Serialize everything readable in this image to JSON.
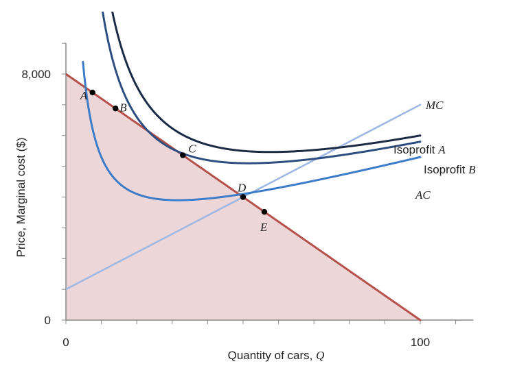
{
  "chart_data": {
    "type": "line",
    "xlabel": "Quantity of cars, ",
    "xlabel_var": "Q",
    "ylabel": "Price, Marginal cost ($)",
    "xlim": [
      0,
      115
    ],
    "ylim": [
      0,
      9000
    ],
    "x_ticks": [
      {
        "value": 0,
        "label": "0"
      },
      {
        "value": 100,
        "label": "100"
      }
    ],
    "y_ticks": [
      {
        "value": 0,
        "label": "0"
      },
      {
        "value": 8000,
        "label": "8,000"
      }
    ],
    "grid": false,
    "colors": {
      "demand": "#b5504a",
      "demand_fill": "#ecd6d7",
      "mc": "#9db9e3",
      "isoprofit_a": "#1b2a45",
      "isoprofit_b": "#2e4d80",
      "ac": "#3d7cc9"
    },
    "series": [
      {
        "key": "demand",
        "kind": "line",
        "x": [
          0,
          100
        ],
        "y": [
          8000,
          0
        ]
      },
      {
        "key": "mc",
        "kind": "line",
        "name": "MC",
        "x": [
          0,
          100
        ],
        "y": [
          1000,
          7000
        ]
      },
      {
        "key": "isoprofit_a",
        "kind": "hyperbola",
        "name_prefix": "Isoprofit ",
        "name_var": "A",
        "params": {
          "base": 2000,
          "k": 100000,
          "slope": 30
        },
        "x_range": [
          12,
          100
        ]
      },
      {
        "key": "isoprofit_b",
        "kind": "hyperbola",
        "name_prefix": "Isoprofit ",
        "name_var": "B",
        "params": {
          "base": 2000,
          "k": 80000,
          "slope": 30
        },
        "x_range": [
          8.5,
          100
        ]
      },
      {
        "key": "ac",
        "kind": "hyperbola",
        "name": "AC",
        "params": {
          "base": 2000,
          "k": 30000,
          "slope": 30
        },
        "x_range": [
          4.8,
          100
        ]
      }
    ],
    "points": [
      {
        "label": "A",
        "x": 7.5,
        "y": 7400
      },
      {
        "label": "B",
        "x": 14,
        "y": 6880
      },
      {
        "label": "C",
        "x": 33,
        "y": 5360
      },
      {
        "label": "D",
        "x": 50,
        "y": 4000
      },
      {
        "label": "E",
        "x": 56,
        "y": 3520
      }
    ]
  }
}
